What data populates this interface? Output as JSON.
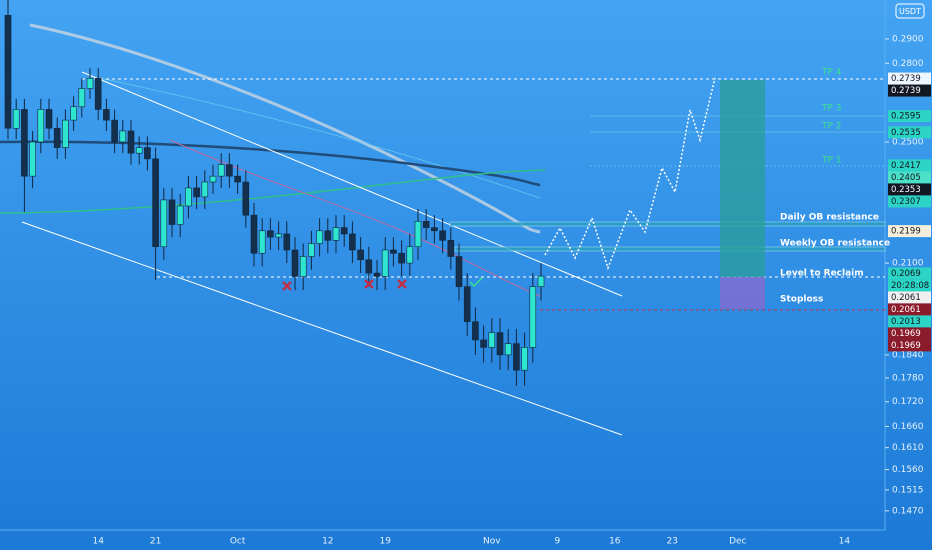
{
  "chart_data": {
    "type": "candlestick",
    "currency": "USDT",
    "log_scale": true,
    "categories": [
      null,
      null,
      null,
      null,
      null,
      null,
      null,
      null,
      null,
      null,
      null,
      "14",
      null,
      null,
      null,
      null,
      null,
      null,
      "21",
      null,
      null,
      null,
      null,
      null,
      null,
      null,
      null,
      null,
      "Oct",
      null,
      null,
      null,
      null,
      null,
      null,
      null,
      null,
      null,
      null,
      "12",
      null,
      null,
      null,
      null,
      null,
      null,
      "19",
      null,
      null,
      null,
      null,
      null,
      null,
      null,
      null,
      null,
      null,
      null,
      null,
      "Nov",
      null,
      null,
      null,
      null,
      null,
      null,
      null,
      "9",
      null,
      null,
      null,
      null,
      null,
      null,
      "16",
      null,
      null,
      null,
      null,
      null,
      null,
      "23",
      null,
      null,
      null,
      null,
      null,
      null,
      null,
      "Dec",
      null,
      null,
      null,
      null,
      null,
      null,
      null,
      null,
      null,
      null,
      null,
      null,
      "14"
    ],
    "open": [
      0.3,
      0.255,
      0.262,
      0.238,
      0.25,
      0.262,
      0.255,
      0.248,
      0.258,
      0.263,
      0.27,
      0.274,
      0.262,
      0.258,
      0.25,
      0.254,
      0.246,
      0.248,
      0.244,
      0.215,
      0.23,
      0.222,
      0.228,
      0.234,
      0.231,
      0.236,
      0.238,
      0.242,
      0.238,
      0.236,
      0.225,
      0.213,
      0.22,
      0.218,
      0.219,
      0.214,
      0.206,
      0.212,
      0.216,
      0.22,
      0.217,
      0.221,
      0.219,
      0.214,
      0.211,
      0.207,
      0.206,
      0.214,
      0.213,
      0.21,
      0.215,
      0.223,
      0.221,
      0.22,
      0.217,
      0.212,
      0.203,
      0.193,
      0.188,
      0.186,
      0.19,
      0.184,
      0.187,
      0.18,
      0.186,
      0.203,
      null,
      null,
      null,
      null,
      null,
      null,
      null,
      null,
      null,
      null,
      null,
      null,
      null,
      null,
      null,
      null,
      null,
      null,
      null,
      null,
      null,
      null,
      null,
      null,
      null,
      null,
      null,
      null,
      null,
      null,
      null,
      null,
      null,
      null,
      null,
      null,
      null
    ],
    "high": [
      0.307,
      0.266,
      0.266,
      0.254,
      0.266,
      0.266,
      0.259,
      0.262,
      0.267,
      0.274,
      0.278,
      0.278,
      0.266,
      0.262,
      0.258,
      0.258,
      0.252,
      0.252,
      0.248,
      0.234,
      0.234,
      0.232,
      0.238,
      0.238,
      0.24,
      0.242,
      0.246,
      0.246,
      0.242,
      0.24,
      0.229,
      0.224,
      0.224,
      0.223,
      0.223,
      0.218,
      0.216,
      0.22,
      0.224,
      0.224,
      0.225,
      0.225,
      0.223,
      0.218,
      0.215,
      0.211,
      0.218,
      0.218,
      0.217,
      0.219,
      0.227,
      0.227,
      0.225,
      0.224,
      0.221,
      0.216,
      0.207,
      0.197,
      0.192,
      0.194,
      0.194,
      0.191,
      0.191,
      0.19,
      0.207,
      0.21,
      null,
      null,
      null,
      null,
      null,
      null,
      null,
      null,
      null,
      null,
      null,
      null,
      null,
      null,
      null,
      null,
      null,
      null,
      null,
      null,
      null,
      null,
      null,
      null,
      null,
      null,
      null,
      null,
      null,
      null,
      null,
      null,
      null,
      null,
      null,
      null,
      null
    ],
    "low": [
      0.251,
      0.251,
      0.226,
      0.234,
      0.246,
      0.251,
      0.244,
      0.244,
      0.254,
      0.259,
      0.266,
      0.258,
      0.254,
      0.246,
      0.246,
      0.242,
      0.242,
      0.24,
      0.205,
      0.211,
      0.218,
      0.218,
      0.224,
      0.227,
      0.227,
      0.232,
      0.234,
      0.234,
      0.232,
      0.221,
      0.209,
      0.209,
      0.214,
      0.214,
      0.21,
      0.202,
      0.202,
      0.208,
      0.212,
      0.213,
      0.213,
      0.215,
      0.21,
      0.207,
      0.203,
      0.202,
      0.202,
      0.209,
      0.206,
      0.206,
      0.211,
      0.217,
      0.216,
      0.213,
      0.208,
      0.199,
      0.189,
      0.184,
      0.182,
      0.182,
      0.18,
      0.18,
      0.176,
      0.176,
      0.182,
      0.199,
      null,
      null,
      null,
      null,
      null,
      null,
      null,
      null,
      null,
      null,
      null,
      null,
      null,
      null,
      null,
      null,
      null,
      null,
      null,
      null,
      null,
      null,
      null,
      null,
      null,
      null,
      null,
      null,
      null,
      null,
      null,
      null,
      null,
      null,
      null,
      null,
      null
    ],
    "close": [
      0.255,
      0.262,
      0.238,
      0.25,
      0.262,
      0.255,
      0.248,
      0.258,
      0.263,
      0.27,
      0.274,
      0.262,
      0.258,
      0.25,
      0.254,
      0.246,
      0.248,
      0.244,
      0.215,
      0.23,
      0.222,
      0.228,
      0.234,
      0.231,
      0.236,
      0.238,
      0.242,
      0.238,
      0.236,
      0.225,
      0.213,
      0.22,
      0.218,
      0.219,
      0.214,
      0.206,
      0.212,
      0.216,
      0.22,
      0.217,
      0.221,
      0.219,
      0.214,
      0.211,
      0.207,
      0.206,
      0.214,
      0.213,
      0.21,
      0.215,
      0.223,
      0.221,
      0.22,
      0.217,
      0.212,
      0.203,
      0.193,
      0.188,
      0.186,
      0.19,
      0.184,
      0.187,
      0.18,
      0.186,
      0.203,
      0.2061,
      null,
      null,
      null,
      null,
      null,
      null,
      null,
      null,
      null,
      null,
      null,
      null,
      null,
      null,
      null,
      null,
      null,
      null,
      null,
      null,
      null,
      null,
      null,
      null,
      null,
      null,
      null,
      null,
      null,
      null,
      null,
      null,
      null,
      null,
      null,
      null,
      null
    ],
    "up_color": "#2ee6d0",
    "down_color": "#14304d",
    "ylim": [
      0.143,
      0.3067
    ],
    "yticks": [
      {
        "value": 0.29,
        "label": "0.2900"
      },
      {
        "value": 0.28,
        "label": "0.2800"
      },
      {
        "value": 0.25,
        "label": "0.2500"
      },
      {
        "value": 0.21,
        "label": "0.2100"
      },
      {
        "value": 0.184,
        "label": "0.1840"
      },
      {
        "value": 0.178,
        "label": "0.1780"
      },
      {
        "value": 0.172,
        "label": "0.1720"
      },
      {
        "value": 0.166,
        "label": "0.1660"
      },
      {
        "value": 0.161,
        "label": "0.1610"
      },
      {
        "value": 0.156,
        "label": "0.1560"
      },
      {
        "value": 0.1515,
        "label": "0.1515"
      },
      {
        "value": 0.147,
        "label": "0.1470"
      }
    ],
    "price_labels": [
      0.2739,
      0.2739,
      0.2595,
      0.2535,
      0.2417,
      0.2405,
      0.2353,
      0.2307,
      0.2199,
      0.2069,
      0.2061,
      0.2061,
      0.2013,
      0.1969,
      0.1969
    ],
    "price_label_colors": [
      "#eef6ff",
      "#131722",
      "#2bd4c4",
      "#2bd4c4",
      "#2bd4c4",
      "#4de0c8",
      "#131722",
      "#2bd4c4",
      "#f5efdc",
      "#2bd4c4",
      "#f0f0f0",
      "#8b1a2b",
      "#2bd4c4",
      "#8b1a2b",
      "#8b1a2b"
    ],
    "price_label_text_colors": [
      "#131722",
      "#ffffff",
      "#131722",
      "#131722",
      "#131722",
      "#131722",
      "#ffffff",
      "#131722",
      "#131722",
      "#131722",
      "#131722",
      "#ffffff",
      "#131722",
      "#ffffff",
      "#ffffff"
    ],
    "countdown": "20:28:08",
    "annotations": [
      "TP 4",
      "TP 3",
      "TP 2",
      "TP 1",
      "Daily OB resistance",
      "Weekly OB resistance",
      "Level to Reclaim",
      "Stoploss"
    ]
  }
}
